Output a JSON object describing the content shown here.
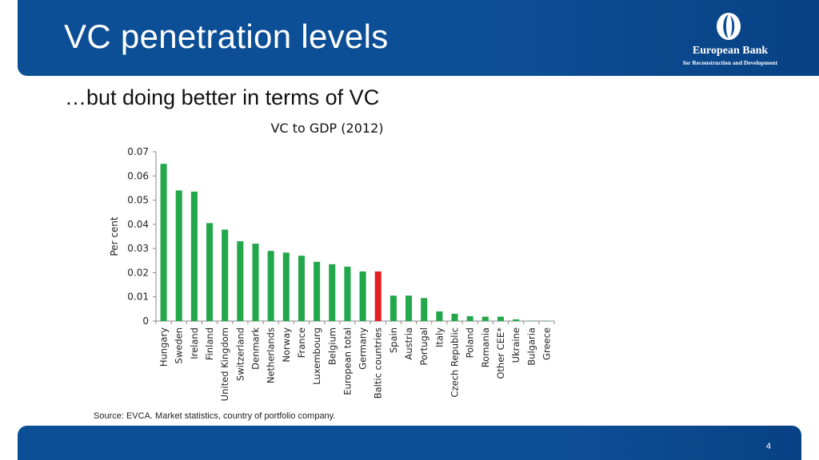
{
  "header": {
    "title": "VC penetration levels",
    "logo_name": "European Bank",
    "logo_sub": "for Reconstruction and Development"
  },
  "subtitle": "…but doing better in terms of VC",
  "source": "Source: EVCA. Market statistics, country of portfolio company.",
  "page_number": "4",
  "colors": {
    "header_bg": "#0d4f96",
    "bar": "#22a84a",
    "highlight_bar": "#e31e24"
  },
  "chart_data": {
    "type": "bar",
    "title": "VC to GDP (2012)",
    "xlabel": "",
    "ylabel": "Per cent",
    "ylim": [
      0,
      0.07
    ],
    "yticks": [
      "0",
      "0.01",
      "0.02",
      "0.03",
      "0.04",
      "0.05",
      "0.06",
      "0.07"
    ],
    "grid": false,
    "highlight": "Baltic countries",
    "categories": [
      "Hungary",
      "Sweden",
      "Ireland",
      "Finland",
      "United Kingdom",
      "Switzerland",
      "Denmark",
      "Netherlands",
      "Norway",
      "France",
      "Luxembourg",
      "Belgium",
      "European total",
      "Germany",
      "Baltic countries",
      "Spain",
      "Austria",
      "Portugal",
      "Italy",
      "Czech Republic",
      "Poland",
      "Romania",
      "Other CEE*",
      "Ukraine",
      "Bulgaria",
      "Greece"
    ],
    "values": [
      0.065,
      0.054,
      0.0535,
      0.0405,
      0.0378,
      0.033,
      0.032,
      0.029,
      0.0283,
      0.027,
      0.0245,
      0.0235,
      0.0225,
      0.0205,
      0.0205,
      0.0105,
      0.0105,
      0.0095,
      0.004,
      0.003,
      0.002,
      0.0018,
      0.0018,
      0.0007,
      0.0001,
      0.0001
    ]
  }
}
